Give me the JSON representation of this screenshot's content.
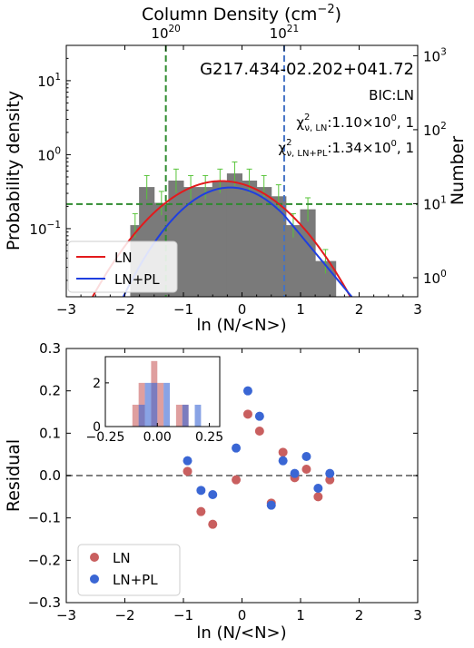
{
  "chart_data": [
    {
      "type": "histogram",
      "top_axis_label": "Column Density (cm",
      "top_axis_label_sup": "−2",
      "top_axis_label_end": ")",
      "top_ticks": [
        {
          "label": "10",
          "sup": "20",
          "value": -1.3
        },
        {
          "label": "10",
          "sup": "21",
          "value": 0.72
        }
      ],
      "xlabel": "ln (N/<N>)",
      "ylabel": "Probability density",
      "ylabel_right": "Number",
      "xlim": [
        -3,
        3
      ],
      "ylim": [
        0.012,
        30
      ],
      "yscale": "log",
      "xticks": [
        "−3",
        "−2",
        "−1",
        "0",
        "1",
        "2",
        "3"
      ],
      "yticks": [
        {
          "value": 0.1,
          "label": "10",
          "sup": "−1"
        },
        {
          "value": 1,
          "label": "10",
          "sup": "0"
        },
        {
          "value": 10,
          "label": "10",
          "sup": "1"
        }
      ],
      "yticks_right": [
        {
          "value": 1,
          "label": "10",
          "sup": "0"
        },
        {
          "value": 10,
          "label": "10",
          "sup": "1"
        },
        {
          "value": 100,
          "label": "10",
          "sup": "2"
        },
        {
          "value": 1000,
          "label": "10",
          "sup": "3"
        }
      ],
      "annotations": {
        "name": "G217.434-02.202+041.72",
        "bic": "BIC:LN",
        "chi_ln_prefix": "χ",
        "chi_ln_sub": "ν, LN",
        "chi_ln_value": ":1.10×10",
        "chi_ln_exp": "0",
        "chi_ln_end": ", 1",
        "chi_lnpl_prefix": "χ",
        "chi_lnpl_sub": "ν, LN+PL",
        "chi_lnpl_value": ":1.34×10",
        "chi_lnpl_exp": "0",
        "chi_lnpl_end": ", 1"
      },
      "histogram_bins": [
        {
          "x0": -1.9,
          "x1": -1.75,
          "density": 0.11
        },
        {
          "x0": -1.75,
          "x1": -1.5,
          "density": 0.36
        },
        {
          "x0": -1.5,
          "x1": -1.25,
          "density": 0.22
        },
        {
          "x0": -1.25,
          "x1": -1.0,
          "density": 0.44
        },
        {
          "x0": -1.0,
          "x1": -0.75,
          "density": 0.36
        },
        {
          "x0": -0.75,
          "x1": -0.5,
          "density": 0.36
        },
        {
          "x0": -0.5,
          "x1": -0.25,
          "density": 0.44
        },
        {
          "x0": -0.25,
          "x1": 0.0,
          "density": 0.55
        },
        {
          "x0": 0.0,
          "x1": 0.25,
          "density": 0.44
        },
        {
          "x0": 0.25,
          "x1": 0.5,
          "density": 0.36
        },
        {
          "x0": 0.5,
          "x1": 0.75,
          "density": 0.27
        },
        {
          "x0": 0.75,
          "x1": 1.0,
          "density": 0.11
        },
        {
          "x0": 1.0,
          "x1": 1.25,
          "density": 0.18
        },
        {
          "x0": 1.25,
          "x1": 1.6,
          "density": 0.036
        }
      ],
      "vlines": [
        {
          "x": -1.3,
          "color": "#2e8b2e"
        },
        {
          "x": 0.72,
          "color": "#4472c4"
        }
      ],
      "hline": {
        "y": 0.215,
        "color": "#2e8b2e"
      },
      "series": [
        {
          "name": "LN",
          "color": "#e31a1c",
          "model": "lognormal",
          "peak": 0.44,
          "mu": -0.35,
          "sigma": 0.82
        },
        {
          "name": "LN+PL",
          "color": "#1f3fe0",
          "model": "lognormal_powerlaw",
          "peak": 0.36,
          "mu": -0.2,
          "sigma": 0.7,
          "pl_start": 0.72,
          "pl_slope": -2.2
        }
      ],
      "legend": {
        "position": "lower-left",
        "entries": [
          "LN",
          "LN+PL"
        ]
      }
    },
    {
      "type": "scatter",
      "xlabel": "ln (N/<N>)",
      "ylabel": "Residual",
      "xlim": [
        -3,
        3
      ],
      "ylim": [
        -0.3,
        0.3
      ],
      "xticks": [
        "−3",
        "−2",
        "−1",
        "0",
        "1",
        "2",
        "3"
      ],
      "yticks": [
        "−0.3",
        "−0.2",
        "−0.1",
        "0.0",
        "0.1",
        "0.2",
        "0.3"
      ],
      "series": [
        {
          "name": "LN",
          "color": "#c95f5f",
          "x": [
            -0.93,
            -0.7,
            -0.5,
            -0.1,
            0.1,
            0.3,
            0.5,
            0.7,
            0.9,
            1.1,
            1.3,
            1.5
          ],
          "y": [
            0.01,
            -0.085,
            -0.115,
            -0.01,
            0.145,
            0.105,
            -0.065,
            0.055,
            -0.005,
            0.015,
            -0.05,
            -0.01
          ]
        },
        {
          "name": "LN+PL",
          "color": "#3a66d4",
          "x": [
            -0.93,
            -0.7,
            -0.5,
            -0.1,
            0.1,
            0.3,
            0.5,
            0.7,
            0.9,
            1.1,
            1.3,
            1.5
          ],
          "y": [
            0.035,
            -0.035,
            -0.045,
            0.065,
            0.2,
            0.14,
            -0.07,
            0.035,
            0.005,
            0.045,
            -0.03,
            0.005
          ]
        }
      ],
      "zero_line": 0.0,
      "legend": {
        "position": "lower-left",
        "entries": [
          "LN",
          "LN+PL"
        ]
      },
      "inset": {
        "type": "histogram",
        "xlim": [
          -0.25,
          0.3
        ],
        "ylim": [
          0,
          3.2
        ],
        "xticks": [
          "−0.25",
          "0.00",
          "0.25"
        ],
        "yticks": [
          "0",
          "2"
        ],
        "series": [
          {
            "name": "LN",
            "color": "#c95f5f",
            "bins": [
              {
                "x0": -0.12,
                "x1": -0.09,
                "count": 1
              },
              {
                "x0": -0.09,
                "x1": -0.06,
                "count": 2
              },
              {
                "x0": -0.03,
                "x1": 0.0,
                "count": 3
              },
              {
                "x0": 0.0,
                "x1": 0.03,
                "count": 2
              },
              {
                "x0": 0.09,
                "x1": 0.12,
                "count": 1
              },
              {
                "x0": 0.12,
                "x1": 0.15,
                "count": 1
              }
            ]
          },
          {
            "name": "LN+PL",
            "color": "#3a66d4",
            "bins": [
              {
                "x0": -0.09,
                "x1": -0.06,
                "count": 1
              },
              {
                "x0": -0.06,
                "x1": -0.03,
                "count": 2
              },
              {
                "x0": -0.03,
                "x1": 0.0,
                "count": 2
              },
              {
                "x0": 0.03,
                "x1": 0.06,
                "count": 2
              },
              {
                "x0": 0.12,
                "x1": 0.15,
                "count": 1
              },
              {
                "x0": 0.18,
                "x1": 0.21,
                "count": 1
              }
            ]
          }
        ]
      }
    }
  ]
}
